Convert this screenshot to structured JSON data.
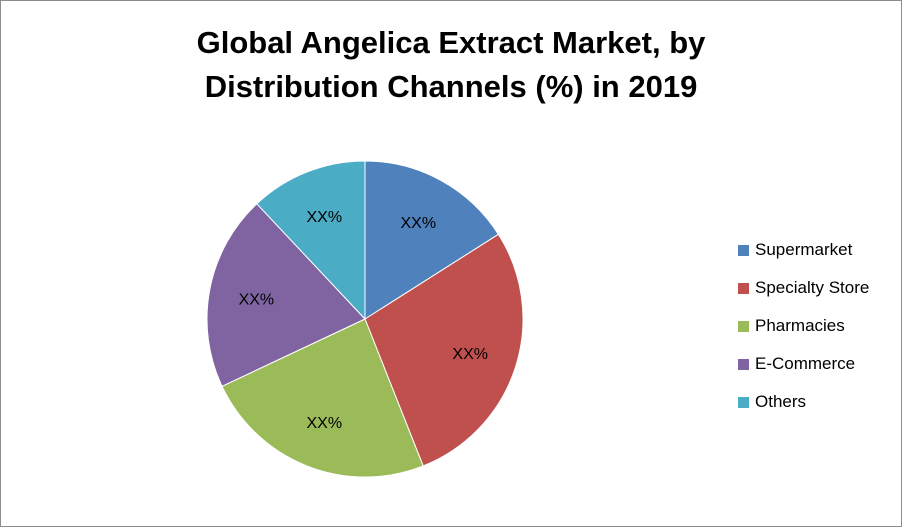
{
  "title_line1": "Global Angelica Extract Market, by",
  "title_line2": "Distribution Channels (%) in 2019",
  "chart_data": {
    "type": "pie",
    "title": "Global Angelica Extract Market, by Distribution Channels (%) in 2019",
    "legend_position": "right",
    "slices": [
      {
        "name": "Supermarket",
        "value": 16,
        "label": "XX%",
        "color": "#4f81bd"
      },
      {
        "name": "Specialty Store",
        "value": 28,
        "label": "XX%",
        "color": "#c0504d"
      },
      {
        "name": "Pharmacies",
        "value": 24,
        "label": "XX%",
        "color": "#9bbb59"
      },
      {
        "name": "E-Commerce",
        "value": 20,
        "label": "XX%",
        "color": "#8064a2"
      },
      {
        "name": "Others",
        "value": 12,
        "label": "XX%",
        "color": "#4bacc6"
      }
    ]
  }
}
